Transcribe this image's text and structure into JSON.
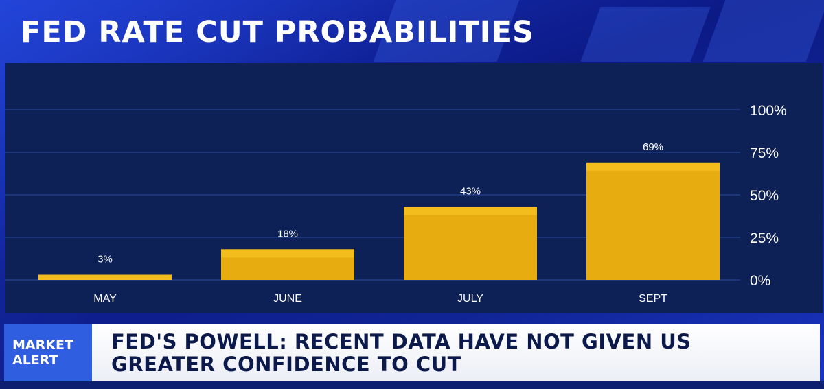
{
  "title": "FED RATE CUT PROBABILITIES",
  "chart_data": {
    "type": "bar",
    "categories": [
      "MAY",
      "JUNE",
      "JULY",
      "SEPT"
    ],
    "values": [
      3,
      18,
      43,
      69
    ],
    "data_labels": [
      "3%",
      "18%",
      "43%",
      "69%"
    ],
    "ylim": [
      0,
      100
    ],
    "yticks": [
      0,
      25,
      50,
      75,
      100
    ],
    "ytick_labels": [
      "0%",
      "25%",
      "50%",
      "75%",
      "100%"
    ],
    "y_axis_side": "right",
    "grid": true,
    "bar_color": "#e6ac10",
    "bar_top_color": "#f2bd1d"
  },
  "ticker": {
    "badge_line1": "MARKET",
    "badge_line2": "ALERT",
    "headline": "FED'S POWELL: RECENT DATA HAVE NOT GIVEN US GREATER CONFIDENCE TO CUT"
  },
  "colors": {
    "panel": "#0d2157",
    "gridline": "#2a4aa0",
    "badge": "#2f5fe0",
    "text_light": "#ffffff"
  }
}
